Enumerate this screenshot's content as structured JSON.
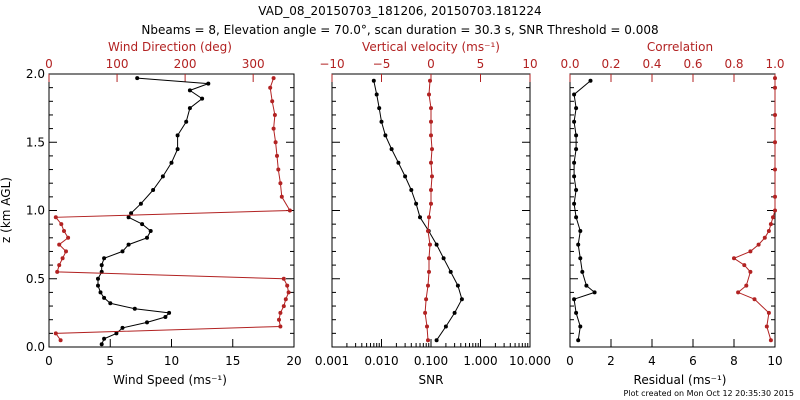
{
  "title_line1": "VAD_08_20150703_181206, 20150703.181224",
  "title_line2": "Nbeams = 8, Elevation angle = 70.0°, scan duration = 30.3 s, SNR Threshold = 0.008",
  "credit": "Plot created on Mon Oct 12 20:35:30 2015",
  "colors": {
    "black_series": "#000000",
    "red_series": "#b22222"
  },
  "chart_data": [
    {
      "type": "line",
      "panel": "wind",
      "ylabel": "z (km AGL)",
      "ylim": [
        0,
        2.0
      ],
      "yticks": [
        "0.0",
        "0.5",
        "1.0",
        "1.5",
        "2.0"
      ],
      "bottom_axis": {
        "label": "Wind Speed (ms⁻¹)",
        "range": [
          0,
          20
        ],
        "ticks": [
          "0",
          "5",
          "10",
          "15",
          "20"
        ]
      },
      "top_axis": {
        "label": "Wind Direction (deg)",
        "range": [
          0,
          360
        ],
        "ticks": [
          "0",
          "100",
          "200",
          "300"
        ]
      },
      "series": [
        {
          "name": "Wind Speed",
          "axis": "bottom",
          "z": [
            0.02,
            0.06,
            0.1,
            0.14,
            0.18,
            0.22,
            0.25,
            0.28,
            0.32,
            0.36,
            0.4,
            0.45,
            0.5,
            0.55,
            0.6,
            0.65,
            0.7,
            0.75,
            0.8,
            0.85,
            0.9,
            0.95,
            0.98,
            1.05,
            1.15,
            1.25,
            1.35,
            1.45,
            1.55,
            1.65,
            1.75,
            1.82,
            1.88,
            1.93,
            1.97
          ],
          "values": [
            4.3,
            4.5,
            5.5,
            6.0,
            8.0,
            9.5,
            9.8,
            7.0,
            5.0,
            4.5,
            4.2,
            4.0,
            4.0,
            4.3,
            4.3,
            4.5,
            6.0,
            6.5,
            8.0,
            8.3,
            7.6,
            6.5,
            6.7,
            7.5,
            8.5,
            9.3,
            10.0,
            10.5,
            10.5,
            11.2,
            11.5,
            12.5,
            11.5,
            13.0,
            7.2
          ]
        },
        {
          "name": "Wind Direction",
          "axis": "top",
          "z": [
            0.05,
            0.1,
            0.15,
            0.2,
            0.25,
            0.3,
            0.35,
            0.4,
            0.45,
            0.5,
            0.55,
            0.6,
            0.65,
            0.7,
            0.75,
            0.8,
            0.85,
            0.9,
            0.95,
            1.0,
            1.1,
            1.2,
            1.3,
            1.4,
            1.5,
            1.6,
            1.7,
            1.8,
            1.9,
            1.97
          ],
          "values": [
            17,
            10,
            340,
            338,
            340,
            345,
            348,
            352,
            350,
            345,
            12,
            15,
            20,
            25,
            15,
            28,
            22,
            18,
            10,
            354,
            342,
            340,
            337,
            335,
            333,
            330,
            332,
            328,
            325,
            330
          ]
        }
      ]
    },
    {
      "type": "line",
      "panel": "snr",
      "ylim": [
        0,
        2.0
      ],
      "bottom_axis": {
        "label": "SNR",
        "scale": "log",
        "range": [
          0.001,
          10
        ],
        "ticks": [
          "0.001",
          "0.010",
          "0.100",
          "1.000",
          "10.000"
        ]
      },
      "top_axis": {
        "label": "Vertical velocity (ms⁻¹)",
        "range": [
          -10,
          10
        ],
        "ticks": [
          "−10",
          "−5",
          "0",
          "5",
          "10"
        ]
      },
      "series": [
        {
          "name": "SNR",
          "axis": "bottom",
          "z": [
            0.05,
            0.15,
            0.25,
            0.35,
            0.45,
            0.55,
            0.65,
            0.75,
            0.85,
            0.95,
            1.05,
            1.15,
            1.25,
            1.35,
            1.45,
            1.55,
            1.65,
            1.75,
            1.85,
            1.95
          ],
          "values": [
            0.13,
            0.2,
            0.3,
            0.42,
            0.35,
            0.25,
            0.18,
            0.13,
            0.09,
            0.06,
            0.05,
            0.04,
            0.03,
            0.022,
            0.016,
            0.012,
            0.01,
            0.009,
            0.008,
            0.007
          ]
        },
        {
          "name": "Vertical velocity",
          "axis": "top",
          "z": [
            0.05,
            0.15,
            0.25,
            0.35,
            0.45,
            0.55,
            0.65,
            0.75,
            0.85,
            0.95,
            1.05,
            1.15,
            1.25,
            1.35,
            1.45,
            1.55,
            1.65,
            1.75,
            1.85,
            1.95
          ],
          "values": [
            -0.3,
            -0.4,
            -0.6,
            -0.5,
            -0.3,
            -0.2,
            -0.2,
            -0.1,
            -0.3,
            -0.2,
            0.0,
            0.0,
            0.1,
            0.0,
            0.1,
            0.0,
            0.0,
            0.0,
            -0.2,
            -0.1
          ]
        }
      ]
    },
    {
      "type": "line",
      "panel": "residual",
      "ylim": [
        0,
        2.0
      ],
      "bottom_axis": {
        "label": "Residual (ms⁻¹)",
        "range": [
          0,
          10
        ],
        "ticks": [
          "0",
          "2",
          "4",
          "6",
          "8",
          "10"
        ]
      },
      "top_axis": {
        "label": "Correlation",
        "range": [
          0,
          1
        ],
        "ticks": [
          "0.0",
          "0.2",
          "0.4",
          "0.6",
          "0.8",
          "1.0"
        ]
      },
      "series": [
        {
          "name": "Residual",
          "axis": "bottom",
          "z": [
            0.05,
            0.15,
            0.25,
            0.35,
            0.4,
            0.45,
            0.55,
            0.65,
            0.75,
            0.85,
            0.95,
            1.05,
            1.15,
            1.25,
            1.35,
            1.45,
            1.55,
            1.65,
            1.75,
            1.85,
            1.95
          ],
          "values": [
            0.4,
            0.5,
            0.3,
            0.2,
            1.2,
            0.8,
            0.6,
            0.5,
            0.4,
            0.5,
            0.3,
            0.2,
            0.3,
            0.2,
            0.2,
            0.3,
            0.3,
            0.2,
            0.3,
            0.2,
            1.0
          ]
        },
        {
          "name": "Correlation",
          "axis": "top",
          "z": [
            0.05,
            0.15,
            0.25,
            0.35,
            0.4,
            0.45,
            0.55,
            0.6,
            0.65,
            0.7,
            0.75,
            0.8,
            0.85,
            0.9,
            0.95,
            1.0,
            1.1,
            1.3,
            1.5,
            1.7,
            1.9,
            1.97
          ],
          "values": [
            0.98,
            0.96,
            0.97,
            0.9,
            0.82,
            0.86,
            0.88,
            0.85,
            0.8,
            0.88,
            0.92,
            0.95,
            0.97,
            0.98,
            0.99,
            1.0,
            1.0,
            1.0,
            1.0,
            1.0,
            1.0,
            1.0
          ]
        }
      ]
    }
  ]
}
